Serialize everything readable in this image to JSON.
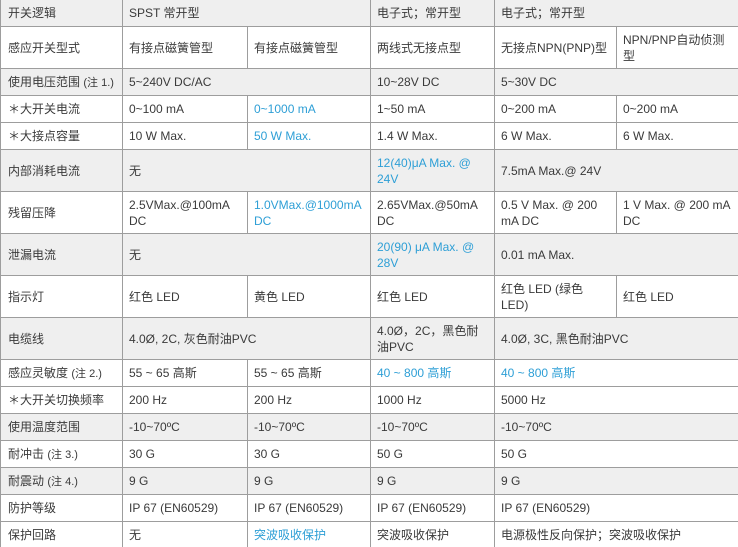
{
  "colors": {
    "accent_blue": "#2e9fd6",
    "row_shade": "#efefef",
    "grid_border": "#9d9d9d",
    "text": "#3a3a3a"
  },
  "table": {
    "rows": [
      {
        "label": "开关逻辑",
        "note": "",
        "shaded": true,
        "tall": false,
        "cells": [
          {
            "text": "SPST 常开型",
            "span": 2,
            "blue": false
          },
          {
            "text": "电子式；常开型",
            "span": 1,
            "blue": false
          },
          {
            "text": "电子式；常开型",
            "span": 2,
            "blue": false
          }
        ]
      },
      {
        "label": "感应开关型式",
        "note": "",
        "shaded": false,
        "tall": true,
        "cells": [
          {
            "text": "有接点磁簧管型",
            "span": 1,
            "blue": false
          },
          {
            "text": "有接点磁簧管型",
            "span": 1,
            "blue": false
          },
          {
            "text": "两线式无接点型",
            "span": 1,
            "blue": false
          },
          {
            "text": "无接点NPN(PNP)型",
            "span": 1,
            "blue": false
          },
          {
            "text": "NPN/PNP自动侦测型",
            "span": 1,
            "blue": false
          }
        ]
      },
      {
        "label": "使用电压范围",
        "note": "(注 1.)",
        "shaded": true,
        "tall": false,
        "cells": [
          {
            "text": "5~240V DC/AC",
            "span": 2,
            "blue": false
          },
          {
            "text": "10~28V DC",
            "span": 1,
            "blue": false
          },
          {
            "text": "5~30V DC",
            "span": 2,
            "blue": false
          }
        ]
      },
      {
        "label": "＊大开关电流",
        "note": "",
        "shaded": false,
        "tall": false,
        "cells": [
          {
            "text": "0~100 mA",
            "span": 1,
            "blue": false
          },
          {
            "text": "0~1000 mA",
            "span": 1,
            "blue": true
          },
          {
            "text": "1~50 mA",
            "span": 1,
            "blue": false
          },
          {
            "text": "0~200 mA",
            "span": 1,
            "blue": false
          },
          {
            "text": "0~200 mA",
            "span": 1,
            "blue": false
          }
        ]
      },
      {
        "label": "＊大接点容量",
        "note": "",
        "shaded": false,
        "tall": false,
        "cells": [
          {
            "text": "10 W Max.",
            "span": 1,
            "blue": false
          },
          {
            "text": "50 W Max.",
            "span": 1,
            "blue": true
          },
          {
            "text": "1.4 W Max.",
            "span": 1,
            "blue": false
          },
          {
            "text": "6 W Max.",
            "span": 1,
            "blue": false
          },
          {
            "text": "6 W Max.",
            "span": 1,
            "blue": false
          }
        ]
      },
      {
        "label": "内部消耗电流",
        "note": "",
        "shaded": true,
        "tall": true,
        "cells": [
          {
            "text": "无",
            "span": 2,
            "blue": false
          },
          {
            "text": "12(40)μA Max. @ 24V",
            "span": 1,
            "blue": true
          },
          {
            "text": "7.5mA Max.@ 24V",
            "span": 2,
            "blue": false
          }
        ]
      },
      {
        "label": "残留压降",
        "note": "",
        "shaded": false,
        "tall": true,
        "cells": [
          {
            "text": "2.5VMax.@100mA DC",
            "span": 1,
            "blue": false
          },
          {
            "text": "1.0VMax.@1000mA DC",
            "span": 1,
            "blue": true
          },
          {
            "text": "2.65VMax.@50mA DC",
            "span": 1,
            "blue": false
          },
          {
            "text": "0.5 V Max. @ 200 mA DC",
            "span": 1,
            "blue": false
          },
          {
            "text": "1 V Max. @ 200 mA DC",
            "span": 1,
            "blue": false
          }
        ]
      },
      {
        "label": "泄漏电流",
        "note": "",
        "shaded": true,
        "tall": true,
        "cells": [
          {
            "text": "无",
            "span": 2,
            "blue": false
          },
          {
            "text": "20(90) μA Max. @ 28V",
            "span": 1,
            "blue": true
          },
          {
            "text": "0.01 mA Max.",
            "span": 2,
            "blue": false
          }
        ]
      },
      {
        "label": "指示灯",
        "note": "",
        "shaded": false,
        "tall": true,
        "cells": [
          {
            "text": "红色 LED",
            "span": 1,
            "blue": false
          },
          {
            "text": "黄色 LED",
            "span": 1,
            "blue": false
          },
          {
            "text": "红色 LED",
            "span": 1,
            "blue": false
          },
          {
            "text": "红色 LED (绿色 LED)",
            "span": 1,
            "blue": false
          },
          {
            "text": "红色 LED",
            "span": 1,
            "blue": false
          }
        ]
      },
      {
        "label": "电缆线",
        "note": "",
        "shaded": true,
        "tall": true,
        "cells": [
          {
            "text": "4.0Ø, 2C, 灰色耐油PVC",
            "span": 2,
            "blue": false
          },
          {
            "text": "4.0Ø，2C，黑色耐油PVC",
            "span": 1,
            "blue": false
          },
          {
            "text": "4.0Ø, 3C, 黑色耐油PVC",
            "span": 2,
            "blue": false
          }
        ]
      },
      {
        "label": "感应灵敏度",
        "note": "(注 2.)",
        "shaded": false,
        "tall": false,
        "cells": [
          {
            "text": "55 ~ 65 高斯",
            "span": 1,
            "blue": false
          },
          {
            "text": "55 ~ 65 高斯",
            "span": 1,
            "blue": false
          },
          {
            "text": "40 ~ 800 高斯",
            "span": 1,
            "blue": true
          },
          {
            "text": "40 ~ 800 高斯",
            "span": 2,
            "blue": true
          }
        ]
      },
      {
        "label": "＊大开关切换频率",
        "note": "",
        "shaded": false,
        "tall": false,
        "cells": [
          {
            "text": "200 Hz",
            "span": 1,
            "blue": false
          },
          {
            "text": "200 Hz",
            "span": 1,
            "blue": false
          },
          {
            "text": "1000 Hz",
            "span": 1,
            "blue": false
          },
          {
            "text": "5000 Hz",
            "span": 2,
            "blue": false
          }
        ]
      },
      {
        "label": "使用温度范围",
        "note": "",
        "shaded": true,
        "tall": false,
        "cells": [
          {
            "text": "-10~70ºC",
            "span": 1,
            "blue": false
          },
          {
            "text": "-10~70ºC",
            "span": 1,
            "blue": false
          },
          {
            "text": "-10~70ºC",
            "span": 1,
            "blue": false
          },
          {
            "text": "-10~70ºC",
            "span": 2,
            "blue": false
          }
        ]
      },
      {
        "label": "耐冲击",
        "note": "(注 3.)",
        "shaded": false,
        "tall": false,
        "cells": [
          {
            "text": "30 G",
            "span": 1,
            "blue": false
          },
          {
            "text": "30 G",
            "span": 1,
            "blue": false
          },
          {
            "text": "50 G",
            "span": 1,
            "blue": false
          },
          {
            "text": "50 G",
            "span": 2,
            "blue": false
          }
        ]
      },
      {
        "label": "耐震动",
        "note": "(注 4.)",
        "shaded": true,
        "tall": false,
        "cells": [
          {
            "text": "9 G",
            "span": 1,
            "blue": false
          },
          {
            "text": "9 G",
            "span": 1,
            "blue": false
          },
          {
            "text": "9 G",
            "span": 1,
            "blue": false
          },
          {
            "text": "9 G",
            "span": 2,
            "blue": false
          }
        ]
      },
      {
        "label": "防护等级",
        "note": "",
        "shaded": false,
        "tall": false,
        "cells": [
          {
            "text": "IP 67 (EN60529)",
            "span": 1,
            "blue": false
          },
          {
            "text": "IP 67 (EN60529)",
            "span": 1,
            "blue": false
          },
          {
            "text": "IP 67 (EN60529)",
            "span": 1,
            "blue": false
          },
          {
            "text": "IP 67 (EN60529)",
            "span": 2,
            "blue": false
          }
        ]
      },
      {
        "label": "保护回路",
        "note": "",
        "shaded": false,
        "tall": false,
        "cells": [
          {
            "text": "无",
            "span": 1,
            "blue": false
          },
          {
            "text": "突波吸收保护",
            "span": 1,
            "blue": true
          },
          {
            "text": "突波吸收保护",
            "span": 1,
            "blue": false
          },
          {
            "text": "电源极性反向保护；突波吸收保护",
            "span": 2,
            "blue": false
          }
        ]
      }
    ]
  }
}
